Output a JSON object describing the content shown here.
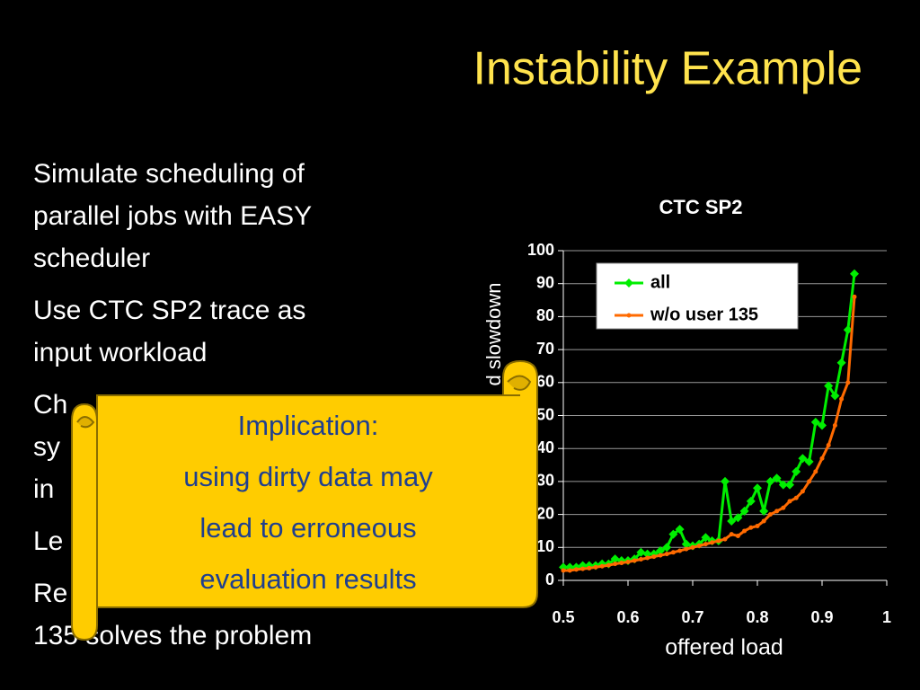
{
  "title": "Instability Example",
  "bullets": [
    [
      "Simulate scheduling of",
      "parallel jobs with EASY",
      "scheduler"
    ],
    [
      "Use CTC SP2 trace as",
      "input workload"
    ],
    [
      "Ch",
      "sy",
      "in"
    ],
    [
      "Le"
    ],
    [
      "Re",
      "135 solves the problem"
    ]
  ],
  "callout": [
    "Implication:",
    "using dirty data may",
    "lead to erroneous",
    "evaluation results"
  ],
  "chart_data": {
    "type": "line",
    "title": "CTC SP2",
    "x_label": "offered load",
    "y_label": "d slowdown",
    "x": [
      0.5,
      0.51,
      0.52,
      0.53,
      0.54,
      0.55,
      0.56,
      0.57,
      0.58,
      0.59,
      0.6,
      0.61,
      0.62,
      0.63,
      0.64,
      0.65,
      0.66,
      0.67,
      0.68,
      0.69,
      0.7,
      0.71,
      0.72,
      0.73,
      0.74,
      0.75,
      0.76,
      0.77,
      0.78,
      0.79,
      0.8,
      0.81,
      0.82,
      0.83,
      0.84,
      0.85,
      0.86,
      0.87,
      0.88,
      0.89,
      0.9,
      0.91,
      0.92,
      0.93,
      0.94,
      0.95
    ],
    "series": [
      {
        "name": "all",
        "color": "#00ee00",
        "marker": "diamond",
        "values": [
          4,
          4,
          4,
          4.5,
          4.5,
          4.5,
          5,
          5,
          6.5,
          6,
          6,
          6.5,
          8.5,
          8,
          8,
          9,
          10,
          14,
          15.5,
          11,
          10.5,
          11,
          13,
          12,
          12,
          30,
          18,
          19,
          21,
          24,
          28,
          21,
          30,
          31,
          29,
          29,
          33,
          37,
          36,
          48,
          47,
          59,
          56,
          66,
          76,
          93
        ]
      },
      {
        "name": "w/o user 135",
        "color": "#ff6a00",
        "marker": "dot",
        "values": [
          3,
          3,
          3.3,
          3.5,
          3.7,
          4,
          4.3,
          4.6,
          5,
          5.3,
          5.6,
          6,
          6.4,
          6.8,
          7.2,
          7.6,
          8,
          8.5,
          9,
          9.5,
          10,
          10.5,
          11,
          11.5,
          12,
          12.5,
          14,
          13.5,
          15,
          16,
          16.5,
          18,
          20,
          21,
          22,
          24,
          25,
          27,
          30,
          33,
          37,
          41,
          47,
          55,
          60,
          86
        ]
      }
    ],
    "xlim": [
      0.5,
      1
    ],
    "xticks": [
      0.5,
      0.6,
      0.7,
      0.8,
      0.9,
      1
    ],
    "ylim": [
      0,
      100
    ],
    "yticks": [
      0,
      10,
      20,
      30,
      40,
      50,
      60,
      70,
      80,
      90,
      100
    ],
    "grid": true,
    "legend": "top-right"
  }
}
